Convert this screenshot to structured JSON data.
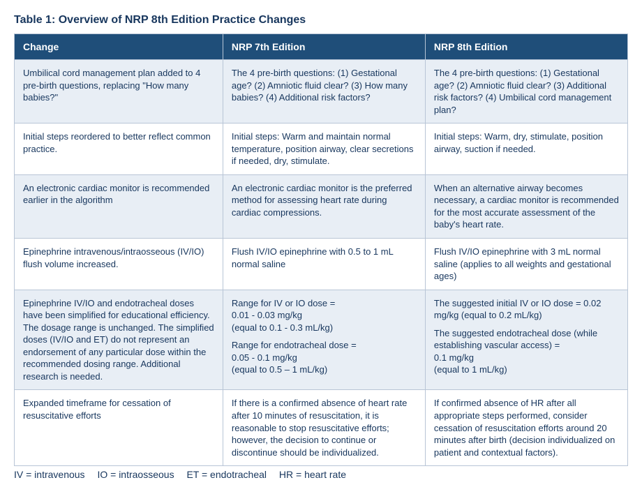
{
  "title": "Table 1: Overview of NRP 8th Edition Practice Changes",
  "columns": [
    "Change",
    "NRP 7th Edition",
    "NRP 8th Edition"
  ],
  "col_widths": [
    "34%",
    "33%",
    "33%"
  ],
  "rows": [
    {
      "change": "Umbilical cord management plan added to 4 pre-birth questions, replacing \"How many babies?\"",
      "ed7": "The 4 pre-birth questions: (1) Gestational age? (2) Amniotic fluid clear? (3) How many babies? (4) Additional risk factors?",
      "ed8": "The 4 pre-birth questions: (1) Gestational age? (2) Amniotic fluid clear? (3) Additional risk factors? (4) Umbilical cord management plan?"
    },
    {
      "change": "Initial steps reordered to better reflect common practice.",
      "ed7": "Initial steps: Warm and maintain normal temperature, position airway, clear secretions if needed, dry, stimulate.",
      "ed8": "Initial steps: Warm, dry, stimulate, position airway, suction if needed."
    },
    {
      "change": "An electronic cardiac monitor is recommended earlier in the algorithm",
      "ed7": "An electronic cardiac monitor is the preferred method for assessing heart rate during cardiac compressions.",
      "ed8": "When an alternative airway becomes necessary, a cardiac monitor is recommended for the most accurate assessment of the baby's heart rate."
    },
    {
      "change": "Epinephrine intravenous/intraosseous (IV/IO) flush volume increased.",
      "ed7": "Flush IV/IO epinephrine with 0.5 to 1 mL normal saline",
      "ed8": "Flush IV/IO epinephrine with 3 mL normal saline (applies to all weights and gestational ages)"
    },
    {
      "change": "Epinephrine IV/IO and endotracheal doses have been simplified for educational efficiency. The dosage range is unchanged. The simplified doses (IV/IO and ET) do not represent an endorsement of any particular dose within the recommended dosing range. Additional research is needed.",
      "ed7_p1": "Range for IV or IO dose =\n0.01 - 0.03 mg/kg\n(equal to 0.1 - 0.3 mL/kg)",
      "ed7_p2": "Range for endotracheal dose =\n0.05 - 0.1 mg/kg\n(equal to 0.5 – 1 mL/kg)",
      "ed8_p1": "The suggested initial IV or IO dose = 0.02 mg/kg (equal to 0.2 mL/kg)",
      "ed8_p2": "The suggested endotracheal dose (while establishing vascular access) =\n0.1 mg/kg\n(equal to 1 mL/kg)"
    },
    {
      "change": "Expanded timeframe for cessation of resuscitative efforts",
      "ed7": "If there is a confirmed absence of heart rate after 10 minutes of resuscitation, it is reasonable to stop resuscitative efforts; however, the decision to continue or discontinue should be individualized.",
      "ed8": "If confirmed absence of HR after all appropriate steps performed, consider cessation of resuscitation efforts around 20 minutes after birth (decision individualized on patient and contextual factors)."
    }
  ],
  "footnote": {
    "iv": "IV = intravenous",
    "io": "IO = intraosseous",
    "et": "ET = endotracheal",
    "hr": "HR = heart rate"
  },
  "colors": {
    "header_bg": "#1f4e79",
    "header_fg": "#ffffff",
    "row_alt_bg": "#e8eef5",
    "row_bg": "#ffffff",
    "border": "#b8c5d6",
    "title_fg": "#17365d",
    "text_fg": "#17365d"
  },
  "typography": {
    "title_size_pt": 12,
    "header_size_pt": 11,
    "cell_size_pt": 10,
    "footnote_size_pt": 11,
    "family": "Myriad Pro / sans-serif"
  }
}
